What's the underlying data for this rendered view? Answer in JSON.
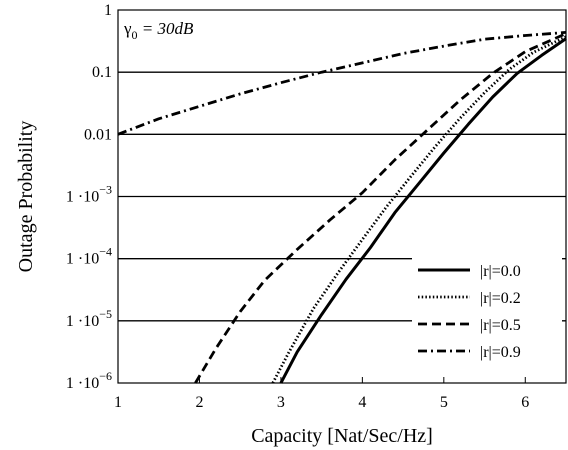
{
  "chart_data": {
    "type": "line",
    "title": "",
    "xlabel": "Capacity [Nat/Sec/Hz]",
    "ylabel": "Outage Probability",
    "xlim": [
      1,
      6.5
    ],
    "ylim": [
      1e-06,
      1
    ],
    "yscale": "log",
    "grid": "horizontal",
    "legend_position": "bottom-right",
    "x_ticks": [
      1,
      2,
      3,
      4,
      5,
      6
    ],
    "y_ticks": [
      {
        "value": 1,
        "base": "1",
        "exp": ""
      },
      {
        "value": 0.1,
        "base": "0.1",
        "exp": ""
      },
      {
        "value": 0.01,
        "base": "0.01",
        "exp": ""
      },
      {
        "value": 0.001,
        "base": "1 ·10",
        "exp": "−3"
      },
      {
        "value": 0.0001,
        "base": "1 ·10",
        "exp": "−4"
      },
      {
        "value": 1e-05,
        "base": "1 ·10",
        "exp": "−5"
      },
      {
        "value": 1e-06,
        "base": "1 ·10",
        "exp": "−6"
      }
    ],
    "annotation": {
      "symbol": "γ",
      "sub": "0",
      "text": " = 30dB"
    },
    "series": [
      {
        "name": "|r|=0.0",
        "style": "solid",
        "x": [
          3.0,
          3.2,
          3.5,
          3.8,
          4.1,
          4.4,
          4.7,
          5.0,
          5.3,
          5.6,
          5.9,
          6.2,
          6.5
        ],
        "y": [
          1e-06,
          3.16e-06,
          1.26e-05,
          4.68e-05,
          0.000151,
          0.00055,
          0.00166,
          0.00501,
          0.0145,
          0.0398,
          0.0955,
          0.186,
          0.347
        ]
      },
      {
        "name": "|r|=0.2",
        "style": "dotted",
        "x": [
          2.9,
          3.1,
          3.4,
          3.7,
          4.0,
          4.3,
          4.6,
          4.9,
          5.2,
          5.5,
          5.8,
          6.1,
          6.5
        ],
        "y": [
          1e-06,
          3.16e-06,
          1.58e-05,
          5.89e-05,
          0.000204,
          0.000692,
          0.00214,
          0.00646,
          0.0182,
          0.0468,
          0.11,
          0.209,
          0.372
        ]
      },
      {
        "name": "|r|=0.5",
        "style": "dashed",
        "x": [
          1.95,
          2.2,
          2.5,
          2.8,
          3.2,
          3.6,
          4.0,
          4.4,
          4.8,
          5.2,
          5.6,
          6.0,
          6.5
        ],
        "y": [
          1e-06,
          3.55e-06,
          1.41e-05,
          4.47e-05,
          0.000141,
          0.000417,
          0.00115,
          0.00389,
          0.0118,
          0.0355,
          0.0955,
          0.214,
          0.417
        ]
      },
      {
        "name": "|r|=0.9",
        "style": "dashdot",
        "x": [
          1.0,
          1.5,
          2.0,
          2.5,
          3.0,
          3.5,
          4.0,
          4.5,
          5.0,
          5.5,
          6.0,
          6.5
        ],
        "y": [
          0.01,
          0.0178,
          0.0282,
          0.0447,
          0.0676,
          0.1,
          0.141,
          0.2,
          0.263,
          0.339,
          0.389,
          0.437
        ]
      }
    ]
  }
}
